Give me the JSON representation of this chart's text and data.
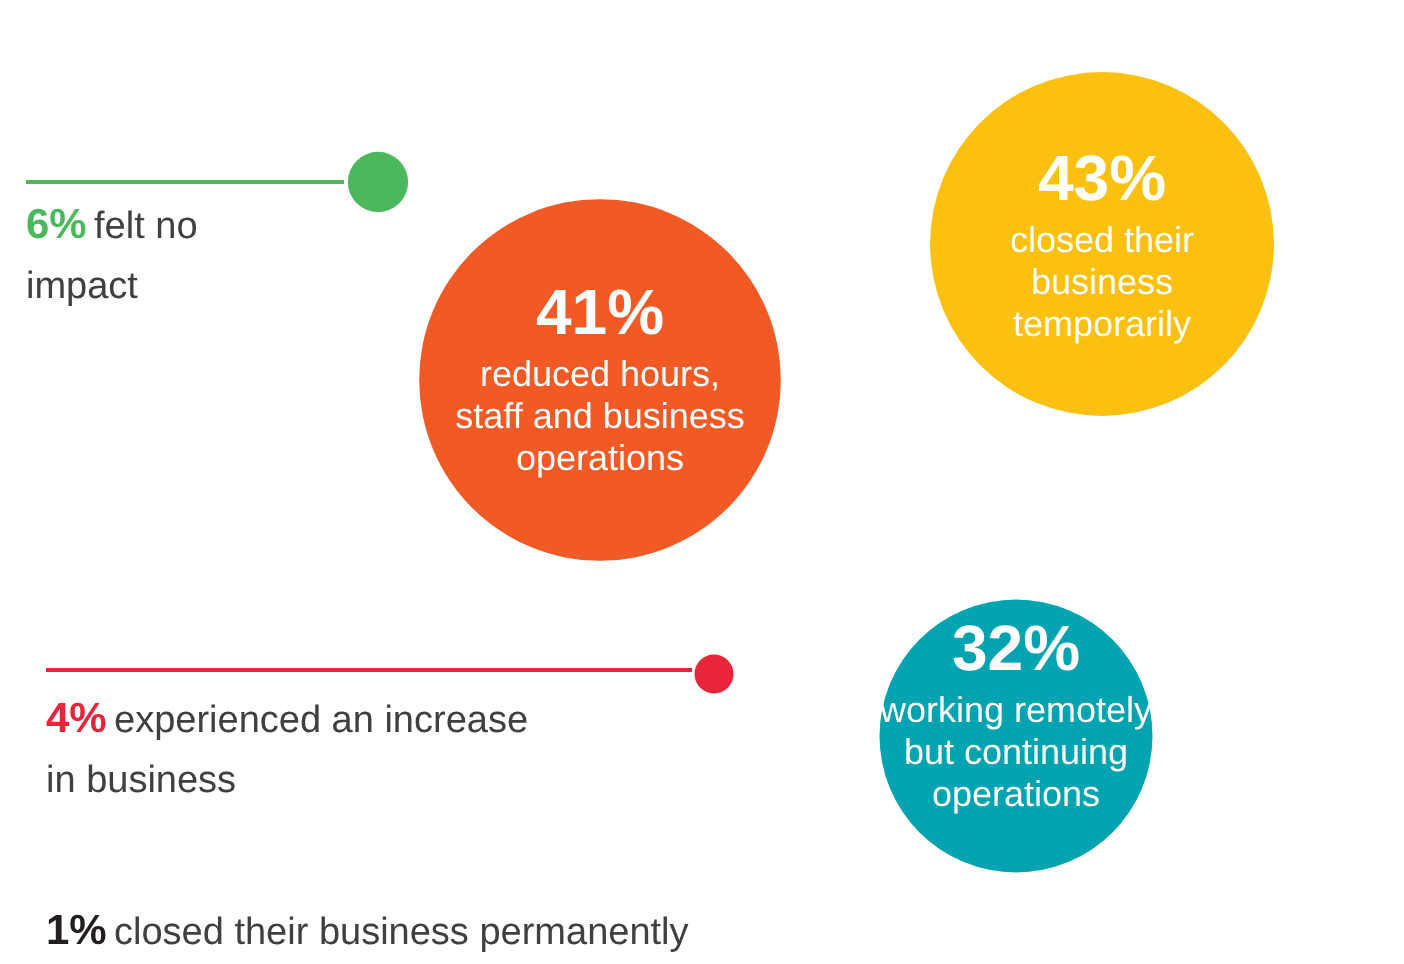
{
  "chart_data": {
    "type": "other",
    "categories": [
      "felt no impact",
      "reduced hours, staff and business operations",
      "closed their business temporarily",
      "working remotely but continuing operations",
      "experienced an increase in business",
      "closed their business permanently"
    ],
    "values": [
      6,
      41,
      43,
      32,
      4,
      1
    ],
    "value_labels": [
      "6%",
      "41%",
      "43%",
      "32%",
      "4%",
      "1%"
    ],
    "colors": [
      "#4cb85c",
      "#f15a24",
      "#fcc010",
      "#00a3b0",
      "#e8253b",
      "#231f20"
    ]
  }
}
